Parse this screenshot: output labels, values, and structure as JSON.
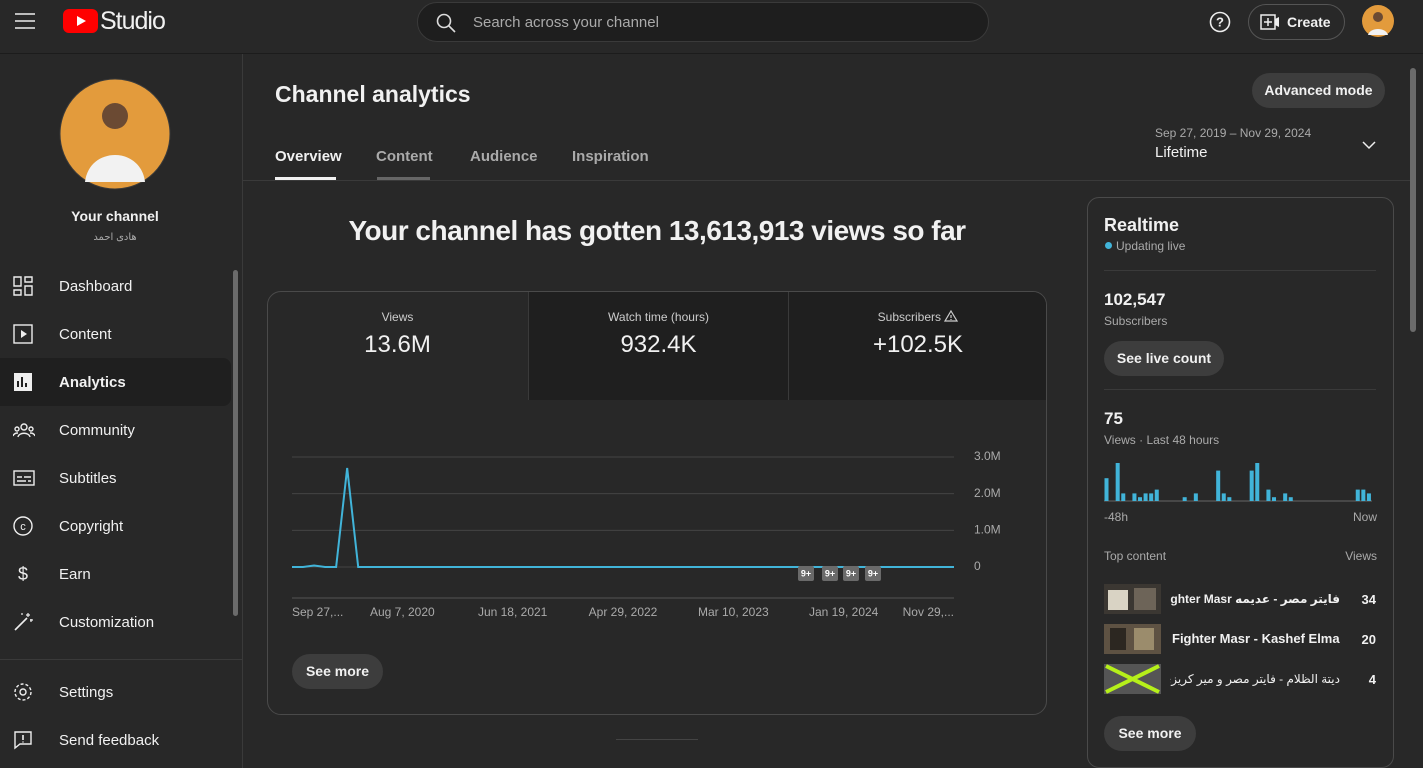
{
  "header": {
    "logo": "Studio",
    "search": "Search across your channel",
    "create": "Create"
  },
  "sidebar": {
    "channel_title": "Your channel",
    "channel_name": "هادى احمد",
    "nav": [
      "Dashboard",
      "Content",
      "Analytics",
      "Community",
      "Subtitles",
      "Copyright",
      "Earn",
      "Customization"
    ],
    "footer": [
      "Settings",
      "Send feedback"
    ]
  },
  "page": {
    "title": "Channel analytics",
    "advanced_mode": "Advanced mode",
    "tabs": [
      "Overview",
      "Content",
      "Audience",
      "Inspiration"
    ],
    "date_range": "Sep 27, 2019 – Nov 29, 2024",
    "period": "Lifetime",
    "headline": "Your channel has gotten 13,613,913 views so far",
    "metrics": [
      {
        "label": "Views",
        "value": "13.6M"
      },
      {
        "label": "Watch time (hours)",
        "value": "932.4K"
      },
      {
        "label": "Subscribers",
        "value": "+102.5K"
      }
    ],
    "see_more": "See more"
  },
  "realtime": {
    "title": "Realtime",
    "status": "Updating live",
    "subscribers": "102,547",
    "subscribers_label": "Subscribers",
    "live_count": "See live count",
    "views": "75",
    "views_label": "Views · Last 48 hours",
    "start": "-48h",
    "end": "Now",
    "top_content": "Top content",
    "views_header": "Views",
    "rows": [
      {
        "title": "فايتر مصر - عديمه Fighter Masr...",
        "views": "34"
      },
      {
        "title": "Fighter Masr - Kashef Elma...",
        "views": "20"
      },
      {
        "title": "ديتة الظلام - فايتر مصر و مير كريزي...",
        "views": "4"
      }
    ],
    "see_more": "See more"
  },
  "chart_data": [
    {
      "type": "line",
      "categories": [
        "Sep 27,...",
        null,
        null,
        null,
        null,
        null,
        null,
        null,
        null,
        null,
        "Aug 7, 2020",
        null,
        null,
        null,
        null,
        null,
        null,
        null,
        null,
        null,
        "Jun 18, 2021",
        null,
        null,
        null,
        null,
        null,
        null,
        null,
        null,
        null,
        "Apr 29, 2022",
        null,
        null,
        null,
        null,
        null,
        null,
        null,
        null,
        null,
        "Mar 10, 2023",
        null,
        null,
        null,
        null,
        null,
        null,
        null,
        null,
        null,
        "Jan 19, 2024",
        null,
        null,
        null,
        null,
        null,
        null,
        null,
        null,
        null,
        "Nov 29,..."
      ],
      "values": [
        0,
        0,
        40000,
        0,
        0,
        2700000,
        0,
        0,
        0,
        0,
        0,
        0,
        0,
        0,
        0,
        0,
        0,
        0,
        0,
        0,
        0,
        0,
        0,
        0,
        0,
        0,
        0,
        0,
        0,
        0,
        0,
        0,
        0,
        0,
        0,
        0,
        0,
        0,
        0,
        0,
        0,
        0,
        0,
        0,
        0,
        0,
        0,
        0,
        0,
        0,
        0,
        0,
        0,
        0,
        0,
        0,
        0,
        0,
        0,
        0,
        0
      ],
      "color": "#41b4d9",
      "ylim": [
        0,
        3000000
      ],
      "yticks": [
        0,
        {
          "value": 1000000,
          "label": "1.0M"
        },
        {
          "value": 2000000,
          "label": "2.0M"
        },
        {
          "value": 3000000,
          "label": "3.0M"
        }
      ],
      "grid": true,
      "annotations": [
        "9+",
        "9+",
        "9+",
        "9+"
      ]
    },
    {
      "type": "bar",
      "color": "#41b4d9",
      "values": [
        6,
        0,
        10,
        2,
        0,
        2,
        1,
        2,
        2,
        3,
        0,
        0,
        0,
        0,
        1,
        0,
        2,
        0,
        0,
        0,
        8,
        2,
        1,
        0,
        0,
        0,
        8,
        10,
        0,
        3,
        1,
        0,
        2,
        1,
        0,
        0,
        0,
        0,
        0,
        0,
        0,
        0,
        0,
        0,
        0,
        3,
        3,
        2
      ]
    }
  ]
}
